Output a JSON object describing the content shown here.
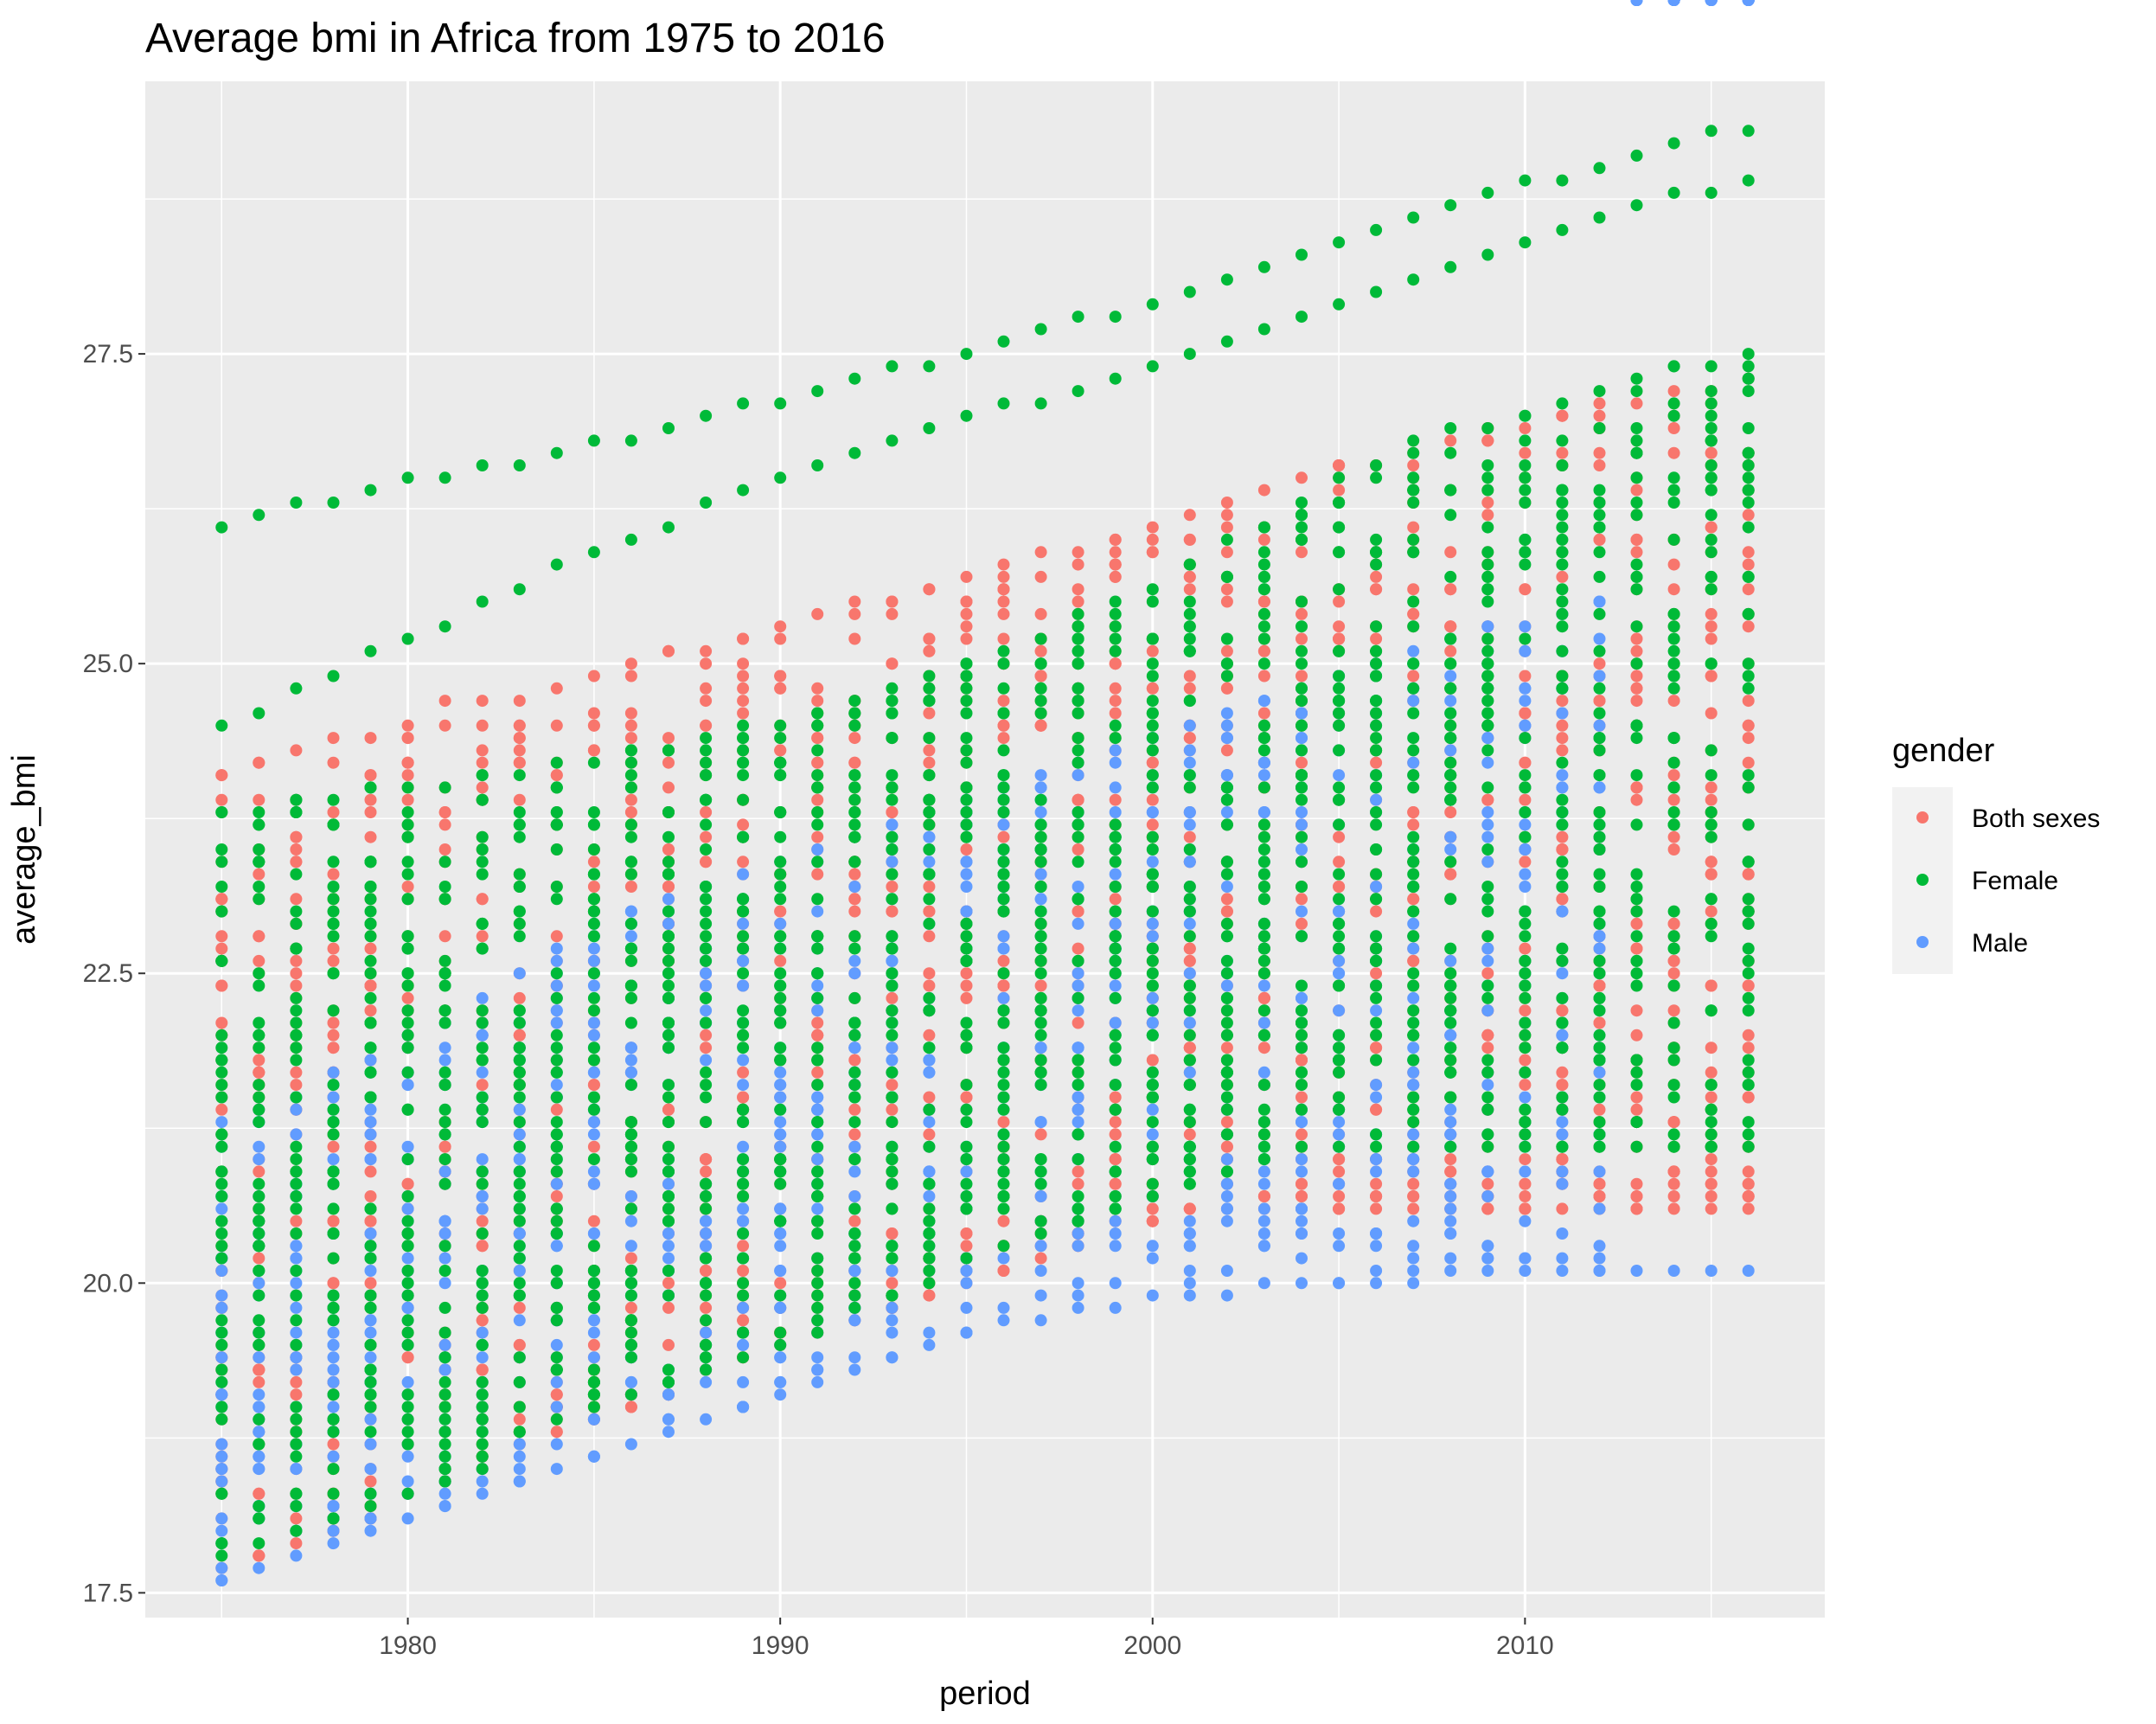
{
  "chart_data": {
    "type": "scatter",
    "title": "Average bmi in Africa from 1975 to 2016",
    "xlabel": "period",
    "ylabel": "average_bmi",
    "xlim": [
      1972.95,
      2018.05
    ],
    "ylim": [
      17.3,
      29.7
    ],
    "x_ticks": [
      1980,
      1990,
      2000,
      2010
    ],
    "x_tick_labels": [
      "1980",
      "1990",
      "2000",
      "2010"
    ],
    "y_ticks": [
      17.5,
      20.0,
      22.5,
      25.0,
      27.5
    ],
    "y_tick_labels": [
      "17.5",
      "20.0",
      "22.5",
      "25.0",
      "27.5"
    ],
    "grid": true,
    "background": "#ebebeb",
    "legend": {
      "title": "gender",
      "position": "right",
      "entries": [
        "Both sexes",
        "Female",
        "Male"
      ]
    },
    "colors": {
      "Both sexes": "#f8766d",
      "Female": "#00ba38",
      "Male": "#619cff"
    },
    "x_range": [
      1975,
      2016
    ],
    "series": [
      {
        "name": "Both sexes",
        "color": "#f8766d",
        "min": [
          17.7,
          17.8,
          17.9,
          18.0,
          18.1,
          18.3,
          18.4,
          18.5,
          18.7,
          18.8,
          18.9,
          19.0,
          19.1,
          19.3,
          19.4,
          19.5,
          19.6,
          19.7,
          19.8,
          19.9,
          20.0,
          20.1,
          20.2,
          20.3,
          20.5,
          20.5,
          20.6
        ],
        "max": [
          24.1,
          24.2,
          24.3,
          24.4,
          24.4,
          24.5,
          24.7,
          24.7,
          24.7,
          24.8,
          24.9,
          25.0,
          25.1,
          25.1,
          25.2,
          25.3,
          25.4,
          25.5,
          25.5,
          25.6,
          25.7,
          25.8,
          25.9,
          25.9,
          26.0,
          26.1,
          26.2,
          26.3,
          26.4,
          26.5,
          26.6,
          26.6,
          26.7,
          26.8,
          26.9,
          26.9,
          27.0,
          27.1,
          27.1,
          27.2,
          27.2,
          27.3
        ]
      },
      {
        "name": "Female",
        "color": "#00ba38",
        "top_line": [
          26.1,
          26.2,
          26.3,
          26.3,
          26.4,
          26.5,
          26.5,
          26.6,
          26.6,
          26.7,
          26.8,
          26.8,
          26.9,
          27.0,
          27.1,
          27.1,
          27.2,
          27.3,
          27.4,
          27.4,
          27.5,
          27.6,
          27.7,
          27.8,
          27.8,
          27.9,
          28.0,
          28.1,
          28.2,
          28.3,
          28.4,
          28.5,
          28.6,
          28.7,
          28.8,
          28.9,
          28.9,
          29.0,
          29.1,
          29.2,
          29.3,
          29.3
        ],
        "second_line": [
          24.5,
          24.6,
          24.8,
          24.9,
          25.1,
          25.2,
          25.3,
          25.5,
          25.6,
          25.8,
          25.9,
          26.0,
          26.1,
          26.3,
          26.4,
          26.5,
          26.6,
          26.7,
          26.8,
          26.9,
          27.0,
          27.1,
          27.1,
          27.2,
          27.3,
          27.4,
          27.5,
          27.6,
          27.7,
          27.8,
          27.9,
          28.0,
          28.1,
          28.2,
          28.3,
          28.4,
          28.5,
          28.6,
          28.7,
          28.8,
          28.8,
          28.9
        ],
        "third_line": [
          23.8,
          23.8,
          23.9,
          23.9,
          24.0,
          24.0,
          24.0,
          24.1,
          24.1,
          24.2,
          24.2,
          24.3,
          24.3,
          24.4,
          24.5,
          24.5,
          24.6,
          24.7,
          24.8,
          24.9,
          25.0,
          25.1,
          25.2,
          25.4,
          25.5,
          25.6,
          25.8,
          26.0,
          26.1,
          26.3,
          26.5,
          26.6,
          26.8,
          26.9,
          26.9,
          27.0,
          27.1,
          27.2,
          27.3,
          27.4,
          27.4,
          27.5,
          27.6,
          27.7,
          27.8,
          27.9,
          27.9
        ],
        "min": [
          17.8,
          17.9,
          18.0,
          18.1,
          18.2,
          18.3,
          18.4,
          18.5,
          18.8,
          18.9,
          19.0,
          19.1,
          19.2,
          19.3,
          19.4,
          19.5,
          19.6,
          19.8,
          19.9,
          20.0,
          20.2,
          20.3,
          20.4,
          20.5,
          20.6,
          20.7,
          20.8,
          20.9,
          21.0,
          21.1,
          21.1
        ]
      },
      {
        "name": "Male",
        "color": "#619cff",
        "min": [
          17.6,
          17.7,
          17.8,
          17.9,
          18.0,
          18.1,
          18.2,
          18.3,
          18.4,
          18.5,
          18.6,
          18.7,
          18.8,
          18.9,
          19.0,
          19.1,
          19.2,
          19.3,
          19.4,
          19.5,
          19.6,
          19.7,
          19.7,
          19.8,
          19.8,
          19.9,
          19.9,
          19.9,
          20.0,
          20.0,
          20.0,
          20.0,
          20.0,
          20.1
        ],
        "max": [
          21.3,
          21.4,
          21.5,
          21.7,
          21.8,
          22.0,
          22.1,
          22.3,
          22.5,
          22.7,
          22.9,
          23.0,
          23.1,
          23.2,
          23.3,
          23.4,
          23.5,
          23.6,
          23.7,
          23.8,
          23.9,
          24.0,
          24.1,
          24.2,
          24.3,
          24.4,
          24.5,
          24.6,
          24.7,
          24.8,
          24.9,
          25.0,
          25.1,
          25.2,
          25.3,
          25.3,
          25.4,
          25.5
        ]
      }
    ]
  }
}
